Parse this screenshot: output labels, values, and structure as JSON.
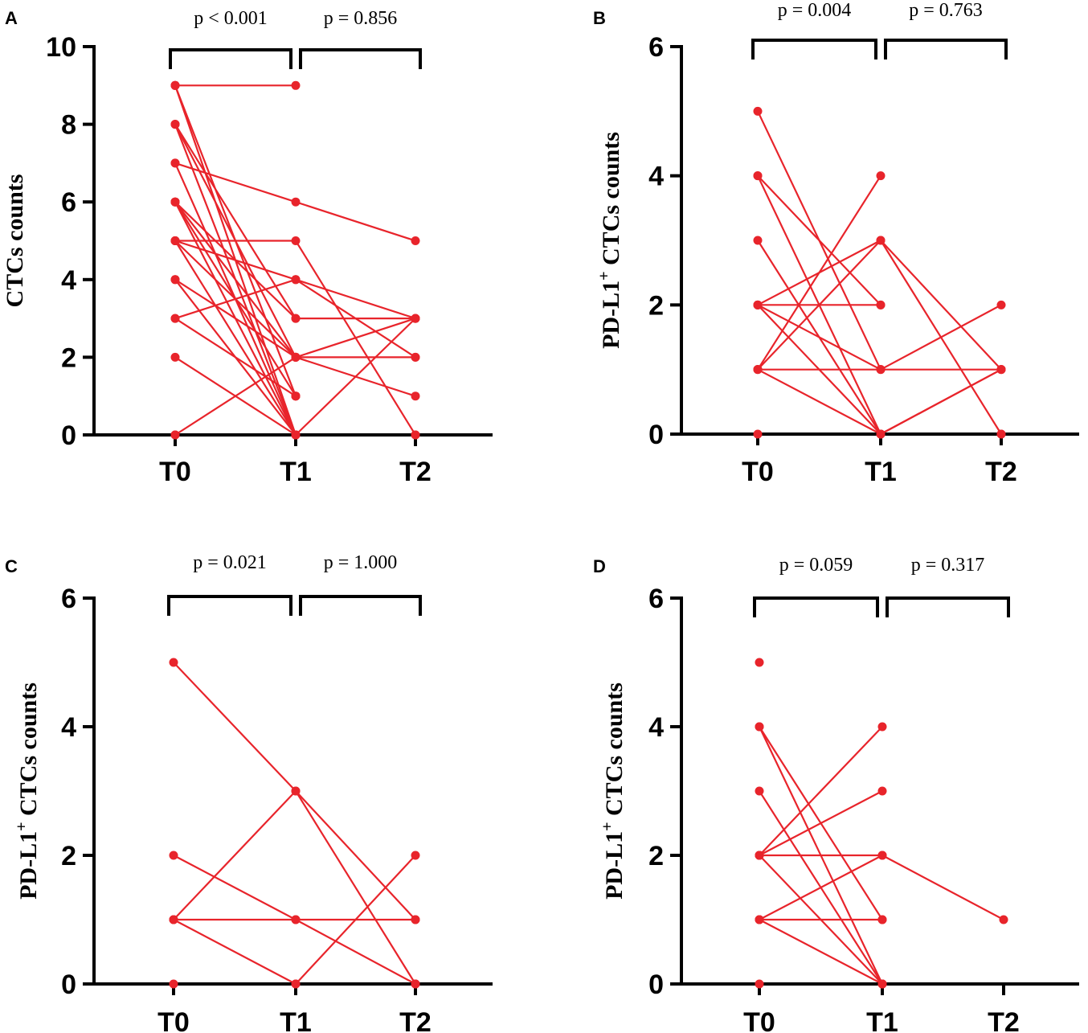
{
  "chart_data": [
    {
      "panel": "A",
      "type": "line",
      "ylabel": "CTCs counts",
      "ylabel_superscript": "",
      "ylabel_suffix": "",
      "categories": [
        "T0",
        "T1",
        "T2"
      ],
      "ylim": [
        0,
        10
      ],
      "yticks": [
        0,
        2,
        4,
        6,
        8,
        10
      ],
      "pvalues": [
        "p < 0.001",
        "p = 0.856"
      ],
      "series_color": "#e8242b",
      "series": [
        {
          "values": [
            9,
            9,
            null
          ]
        },
        {
          "values": [
            9,
            0,
            null
          ]
        },
        {
          "values": [
            9,
            1,
            null
          ]
        },
        {
          "values": [
            8,
            3,
            null
          ]
        },
        {
          "values": [
            8,
            2,
            null
          ]
        },
        {
          "values": [
            8,
            0,
            null
          ]
        },
        {
          "values": [
            7,
            6,
            5
          ]
        },
        {
          "values": [
            7,
            0,
            null
          ]
        },
        {
          "values": [
            6,
            3,
            3
          ]
        },
        {
          "values": [
            6,
            2,
            2
          ]
        },
        {
          "values": [
            6,
            1,
            null
          ]
        },
        {
          "values": [
            6,
            0,
            null
          ]
        },
        {
          "values": [
            5,
            5,
            0
          ]
        },
        {
          "values": [
            5,
            4,
            3
          ]
        },
        {
          "values": [
            5,
            2,
            null
          ]
        },
        {
          "values": [
            5,
            0,
            null
          ]
        },
        {
          "values": [
            4,
            2,
            3
          ]
        },
        {
          "values": [
            4,
            0,
            null
          ]
        },
        {
          "values": [
            3,
            4,
            2
          ]
        },
        {
          "values": [
            3,
            1,
            null
          ]
        },
        {
          "values": [
            2,
            0,
            3
          ]
        },
        {
          "values": [
            0,
            2,
            1
          ]
        },
        {
          "values": [
            0,
            0,
            0
          ]
        }
      ]
    },
    {
      "panel": "B",
      "type": "line",
      "ylabel": "PD-L1",
      "ylabel_superscript": "+",
      "ylabel_suffix": " CTCs counts",
      "categories": [
        "T0",
        "T1",
        "T2"
      ],
      "ylim": [
        0,
        6
      ],
      "yticks": [
        0,
        2,
        4,
        6
      ],
      "pvalues": [
        "p = 0.004",
        "p = 0.763"
      ],
      "series_color": "#e8242b",
      "series": [
        {
          "values": [
            5,
            1,
            2
          ]
        },
        {
          "values": [
            4,
            2,
            null
          ]
        },
        {
          "values": [
            4,
            0,
            1
          ]
        },
        {
          "values": [
            3,
            0,
            null
          ]
        },
        {
          "values": [
            2,
            3,
            1
          ]
        },
        {
          "values": [
            2,
            2,
            null
          ]
        },
        {
          "values": [
            2,
            1,
            null
          ]
        },
        {
          "values": [
            2,
            0,
            null
          ]
        },
        {
          "values": [
            1,
            4,
            null
          ]
        },
        {
          "values": [
            1,
            3,
            0
          ]
        },
        {
          "values": [
            1,
            1,
            1
          ]
        },
        {
          "values": [
            1,
            0,
            1
          ]
        },
        {
          "values": [
            0,
            0,
            0
          ]
        }
      ]
    },
    {
      "panel": "C",
      "type": "line",
      "ylabel": "PD-L1",
      "ylabel_superscript": "+",
      "ylabel_suffix": " CTCs counts",
      "categories": [
        "T0",
        "T1",
        "T2"
      ],
      "ylim": [
        0,
        6
      ],
      "yticks": [
        0,
        2,
        4,
        6
      ],
      "pvalues": [
        "p = 0.021",
        "p = 1.000"
      ],
      "series_color": "#e8242b",
      "series": [
        {
          "values": [
            5,
            3,
            1
          ]
        },
        {
          "values": [
            2,
            1,
            0
          ]
        },
        {
          "values": [
            1,
            3,
            0
          ]
        },
        {
          "values": [
            1,
            1,
            1
          ]
        },
        {
          "values": [
            1,
            0,
            2
          ]
        },
        {
          "values": [
            0,
            0,
            0
          ]
        }
      ]
    },
    {
      "panel": "D",
      "type": "line",
      "ylabel": "PD-L1",
      "ylabel_superscript": "+",
      "ylabel_suffix": " CTCs counts",
      "categories": [
        "T0",
        "T1",
        "T2"
      ],
      "ylim": [
        0,
        6
      ],
      "yticks": [
        0,
        2,
        4,
        6
      ],
      "pvalues": [
        "p = 0.059",
        "p = 0.317"
      ],
      "series_color": "#e8242b",
      "series": [
        {
          "values": [
            5,
            null,
            null
          ]
        },
        {
          "values": [
            4,
            1,
            null
          ]
        },
        {
          "values": [
            4,
            0,
            null
          ]
        },
        {
          "values": [
            3,
            0,
            null
          ]
        },
        {
          "values": [
            2,
            4,
            null
          ]
        },
        {
          "values": [
            2,
            3,
            null
          ]
        },
        {
          "values": [
            2,
            2,
            null
          ]
        },
        {
          "values": [
            2,
            0,
            null
          ]
        },
        {
          "values": [
            1,
            2,
            1
          ]
        },
        {
          "values": [
            1,
            1,
            null
          ]
        },
        {
          "values": [
            1,
            0,
            null
          ]
        },
        {
          "values": [
            0,
            0,
            null
          ]
        }
      ]
    }
  ]
}
